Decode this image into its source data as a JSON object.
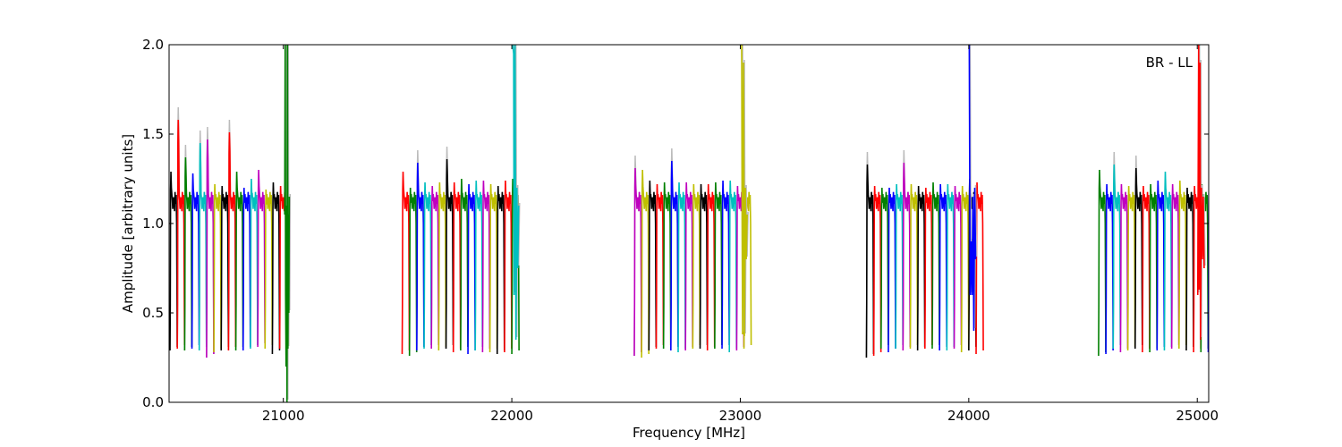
{
  "chart_data": {
    "type": "line",
    "title": "",
    "xlabel": "Frequency [MHz]",
    "ylabel": "Amplitude [arbitrary units]",
    "annotation": "BR - LL",
    "legend": "none",
    "grid": false,
    "xlim": [
      20500,
      25050
    ],
    "ylim": [
      0.0,
      2.0
    ],
    "xticks": [
      21000,
      22000,
      23000,
      24000,
      25000
    ],
    "yticks": [
      0.0,
      0.5,
      1.0,
      1.5,
      2.0
    ],
    "xtick_labels": [
      "21000",
      "22000",
      "23000",
      "24000",
      "25000"
    ],
    "ytick_labels": [
      "0.0",
      "0.5",
      "1.0",
      "1.5",
      "2.0"
    ],
    "channel_width_mhz": 32,
    "basebands": [
      {
        "start": 20504,
        "color_offset": 6,
        "channels": [
          {
            "peak": 1.29,
            "end": 0.29
          },
          {
            "peak": 1.58,
            "end": 0.3
          },
          {
            "peak": 1.37,
            "end": 0.29
          },
          {
            "peak": 1.28,
            "end": 0.3
          },
          {
            "peak": 1.45,
            "end": 0.29
          },
          {
            "peak": 1.47,
            "end": 0.25
          },
          {
            "peak": 1.22,
            "end": 0.28
          },
          {
            "peak": 1.21,
            "end": 0.29
          },
          {
            "peak": 1.51,
            "end": 0.29
          },
          {
            "peak": 1.29,
            "end": 0.29
          },
          {
            "peak": 1.2,
            "end": 0.29
          },
          {
            "peak": 1.25,
            "end": 0.3
          },
          {
            "peak": 1.3,
            "end": 0.31
          },
          {
            "peak": 1.19,
            "end": 0.3
          },
          {
            "peak": 1.23,
            "end": 0.27
          },
          {
            "peak": 1.21,
            "end": 0.3
          }
        ],
        "edge": {
          "color": "#008000",
          "points": [
            [
              21006,
              1.05
            ],
            [
              21008,
              2.0
            ],
            [
              21010,
              0.6
            ],
            [
              21012,
              0.2
            ],
            [
              21014,
              1.1
            ],
            [
              21016,
              0.0
            ],
            [
              21018,
              2.0
            ],
            [
              21020,
              0.3
            ],
            [
              21022,
              1.05
            ],
            [
              21024,
              0.5
            ],
            [
              21026,
              1.15
            ]
          ]
        }
      },
      {
        "start": 21520,
        "color_offset": 0,
        "channels": [
          {
            "peak": 1.29,
            "end": 0.27
          },
          {
            "peak": 1.2,
            "end": 0.26
          },
          {
            "peak": 1.34,
            "end": 0.29
          },
          {
            "peak": 1.23,
            "end": 0.3
          },
          {
            "peak": 1.21,
            "end": 0.3
          },
          {
            "peak": 1.23,
            "end": 0.29
          },
          {
            "peak": 1.36,
            "end": 0.3
          },
          {
            "peak": 1.23,
            "end": 0.28
          },
          {
            "peak": 1.25,
            "end": 0.29
          },
          {
            "peak": 1.22,
            "end": 0.27
          },
          {
            "peak": 1.24,
            "end": 0.29
          },
          {
            "peak": 1.24,
            "end": 0.28
          },
          {
            "peak": 1.22,
            "end": 0.28
          },
          {
            "peak": 1.21,
            "end": 0.27
          },
          {
            "peak": 1.24,
            "end": 0.28
          },
          {
            "peak": 1.25,
            "end": 0.27
          }
        ],
        "edge": {
          "color": "#00bfbf",
          "points": [
            [
              22004,
              2.0
            ],
            [
              22008,
              1.95
            ],
            [
              22010,
              0.6
            ],
            [
              22014,
              2.0
            ],
            [
              22018,
              0.35
            ],
            [
              22022,
              1.2
            ],
            [
              22026,
              0.75
            ],
            [
              22030,
              1.1
            ]
          ]
        }
      },
      {
        "start": 22536,
        "color_offset": 4,
        "channels": [
          {
            "peak": 1.31,
            "end": 0.26
          },
          {
            "peak": 1.3,
            "end": 0.25
          },
          {
            "peak": 1.24,
            "end": 0.29
          },
          {
            "peak": 1.22,
            "end": 0.3
          },
          {
            "peak": 1.23,
            "end": 0.3
          },
          {
            "peak": 1.35,
            "end": 0.29
          },
          {
            "peak": 1.23,
            "end": 0.28
          },
          {
            "peak": 1.23,
            "end": 0.29
          },
          {
            "peak": 1.22,
            "end": 0.3
          },
          {
            "peak": 1.22,
            "end": 0.3
          },
          {
            "peak": 1.22,
            "end": 0.29
          },
          {
            "peak": 1.23,
            "end": 0.3
          },
          {
            "peak": 1.24,
            "end": 0.3
          },
          {
            "peak": 1.24,
            "end": 0.28
          },
          {
            "peak": 1.21,
            "end": 0.29
          },
          {
            "peak": 1.2,
            "end": 0.3
          }
        ],
        "edge": {
          "color": "#bfbf00",
          "points": [
            [
              23006,
              2.0
            ],
            [
              23008,
              1.0
            ],
            [
              23010,
              0.38
            ],
            [
              23014,
              1.9
            ],
            [
              23018,
              0.37
            ],
            [
              23022,
              1.2
            ],
            [
              23026,
              0.8
            ],
            [
              23030,
              1.05
            ]
          ]
        }
      },
      {
        "start": 23552,
        "color_offset": 6,
        "channels": [
          {
            "peak": 1.33,
            "end": 0.25
          },
          {
            "peak": 1.21,
            "end": 0.26
          },
          {
            "peak": 1.2,
            "end": 0.3
          },
          {
            "peak": 1.2,
            "end": 0.28
          },
          {
            "peak": 1.22,
            "end": 0.3
          },
          {
            "peak": 1.34,
            "end": 0.29
          },
          {
            "peak": 1.22,
            "end": 0.3
          },
          {
            "peak": 1.21,
            "end": 0.29
          },
          {
            "peak": 1.2,
            "end": 0.3
          },
          {
            "peak": 1.23,
            "end": 0.3
          },
          {
            "peak": 1.22,
            "end": 0.29
          },
          {
            "peak": 1.22,
            "end": 0.29
          },
          {
            "peak": 1.21,
            "end": 0.3
          },
          {
            "peak": 1.21,
            "end": 0.28
          },
          {
            "peak": 1.25,
            "end": 0.29
          },
          {
            "peak": 1.23,
            "end": 0.27
          }
        ],
        "edge": {
          "color": "#0000ff",
          "points": [
            [
              24002,
              2.0
            ],
            [
              24006,
              0.6
            ],
            [
              24010,
              0.9
            ],
            [
              24014,
              0.6
            ],
            [
              24018,
              1.15
            ],
            [
              24022,
              0.4
            ],
            [
              24026,
              1.2
            ],
            [
              24030,
              0.8
            ]
          ]
        }
      },
      {
        "start": 24568,
        "color_offset": 1,
        "channels": [
          {
            "peak": 1.3,
            "end": 0.26
          },
          {
            "peak": 1.22,
            "end": 0.27
          },
          {
            "peak": 1.33,
            "end": 0.3
          },
          {
            "peak": 1.22,
            "end": 0.28
          },
          {
            "peak": 1.21,
            "end": 0.29
          },
          {
            "peak": 1.31,
            "end": 0.3
          },
          {
            "peak": 1.21,
            "end": 0.28
          },
          {
            "peak": 1.22,
            "end": 0.28
          },
          {
            "peak": 1.24,
            "end": 0.29
          },
          {
            "peak": 1.29,
            "end": 0.29
          },
          {
            "peak": 1.22,
            "end": 0.3
          },
          {
            "peak": 1.24,
            "end": 0.3
          },
          {
            "peak": 1.2,
            "end": 0.29
          },
          {
            "peak": 1.21,
            "end": 0.28
          },
          {
            "peak": 1.22,
            "end": 0.28
          },
          {
            "peak": 1.24,
            "end": 0.28
          }
        ],
        "edge": {
          "color": "#ff0000",
          "points": [
            [
              25002,
              0.6
            ],
            [
              25006,
              2.0
            ],
            [
              25008,
              0.63
            ],
            [
              25012,
              1.9
            ],
            [
              25014,
              0.35
            ],
            [
              25018,
              1.2
            ],
            [
              25022,
              0.8
            ],
            [
              25026,
              1.15
            ],
            [
              25030,
              0.75
            ]
          ]
        }
      }
    ],
    "series_colors": [
      "#ff0000",
      "#008000",
      "#0000ff",
      "#00bfbf",
      "#bf00bf",
      "#bfbf00",
      "#000000"
    ],
    "ghost_color": "#bbbbbb"
  }
}
